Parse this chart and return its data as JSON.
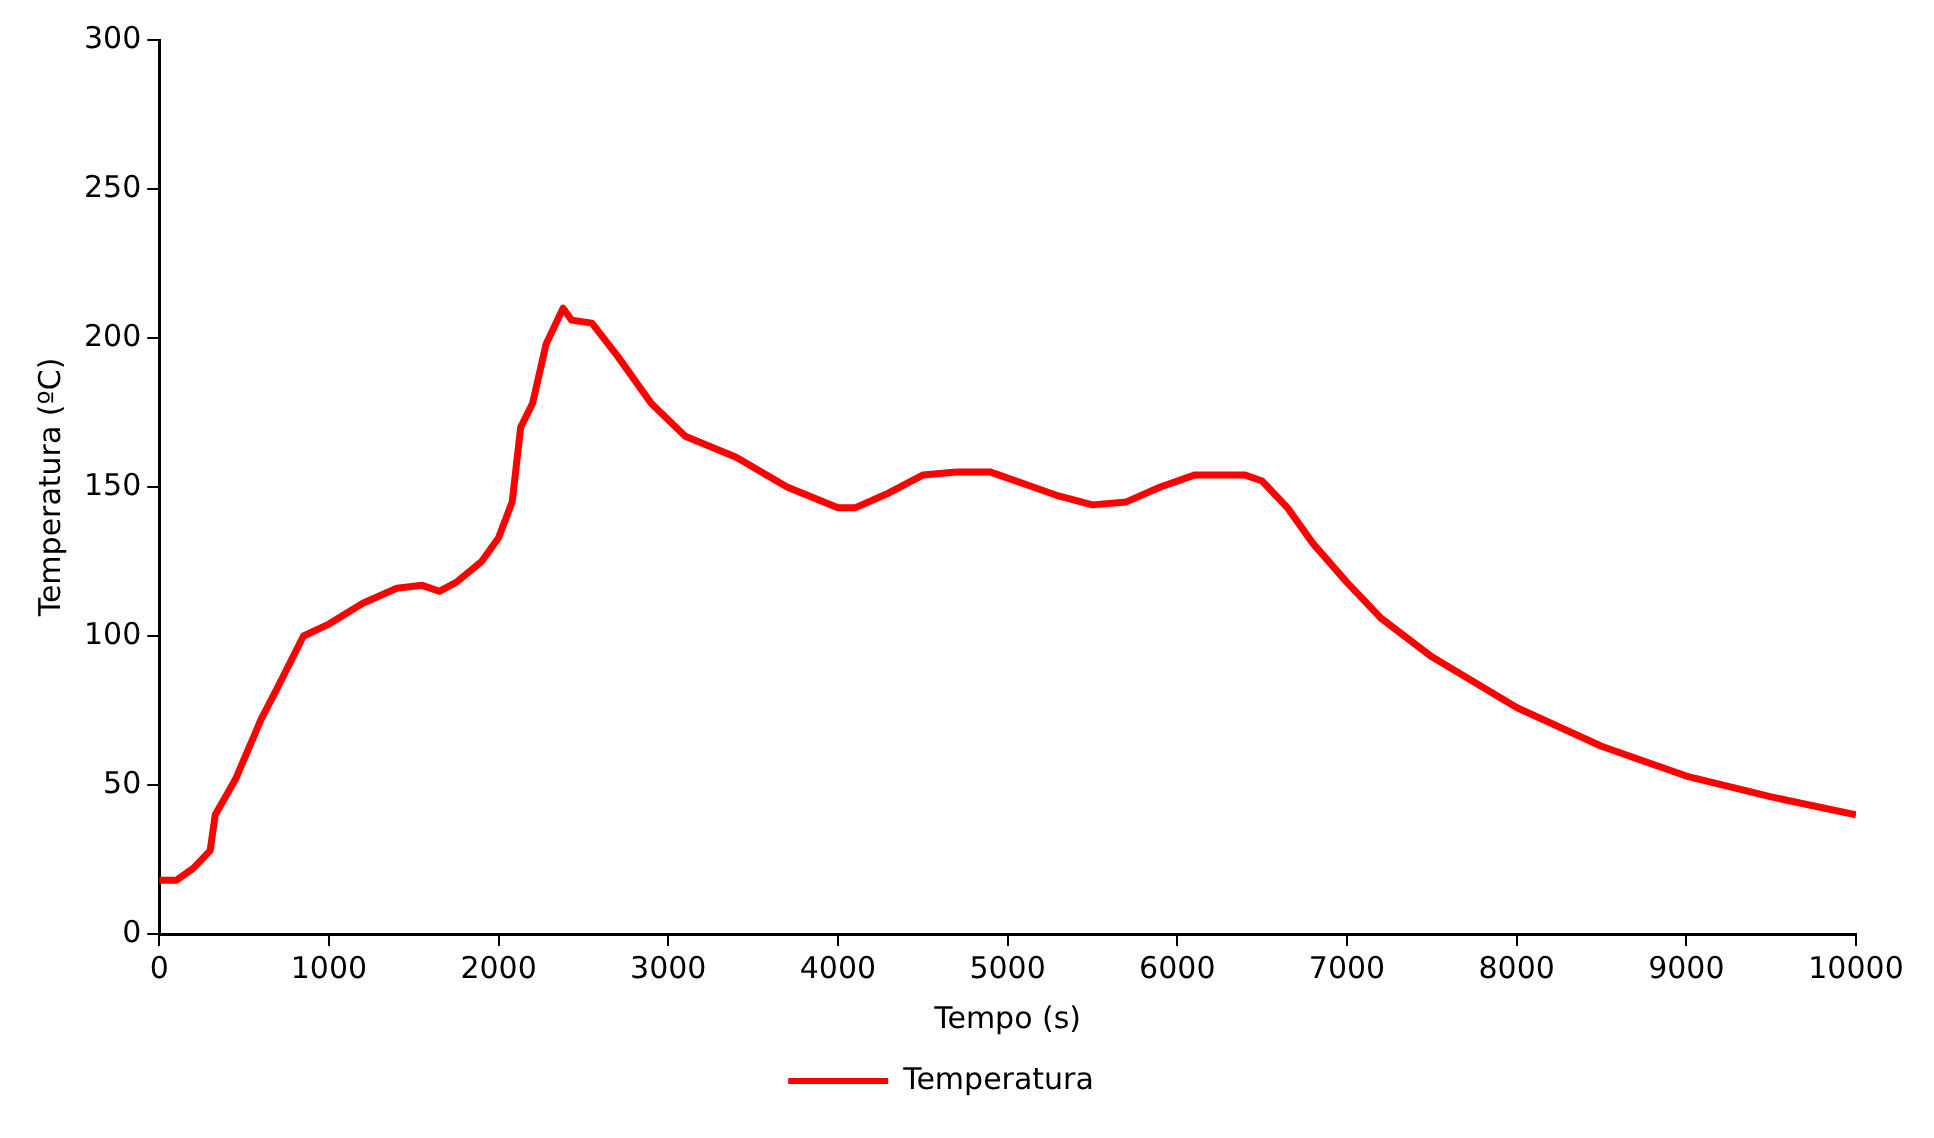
{
  "chart_data": {
    "type": "line",
    "xlabel": "Tempo (s)",
    "ylabel": "Temperatura (ºC)",
    "xlim": [
      0,
      10000
    ],
    "xticks": [
      0,
      1000,
      2000,
      3000,
      4000,
      5000,
      6000,
      7000,
      8000,
      9000,
      10000
    ],
    "ylim": [
      0,
      300
    ],
    "yticks": [
      0,
      50,
      100,
      150,
      200,
      250,
      300
    ],
    "grid": false,
    "legend": "bottom",
    "marker": "none",
    "line_style": "solid",
    "x": [
      0,
      100,
      200,
      300,
      330,
      450,
      600,
      700,
      850,
      1000,
      1200,
      1400,
      1550,
      1650,
      1750,
      1900,
      2000,
      2080,
      2130,
      2200,
      2280,
      2380,
      2430,
      2550,
      2700,
      2900,
      3100,
      3400,
      3700,
      4000,
      4100,
      4300,
      4500,
      4700,
      4900,
      5100,
      5300,
      5500,
      5700,
      5900,
      6100,
      6400,
      6500,
      6650,
      6800,
      7000,
      7200,
      7500,
      8000,
      8500,
      9000,
      9500,
      10000
    ],
    "series": [
      {
        "name": "Temperatura",
        "color": "#ff0000",
        "values": [
          18,
          18,
          22,
          28,
          40,
          52,
          72,
          83,
          100,
          104,
          111,
          116,
          117,
          115,
          118,
          125,
          133,
          145,
          170,
          178,
          198,
          210,
          206,
          205,
          194,
          178,
          167,
          160,
          150,
          143,
          143,
          148,
          154,
          155,
          155,
          151,
          147,
          144,
          145,
          150,
          154,
          154,
          152,
          143,
          131,
          118,
          106,
          93,
          76,
          63,
          53,
          46,
          40
        ]
      }
    ]
  }
}
